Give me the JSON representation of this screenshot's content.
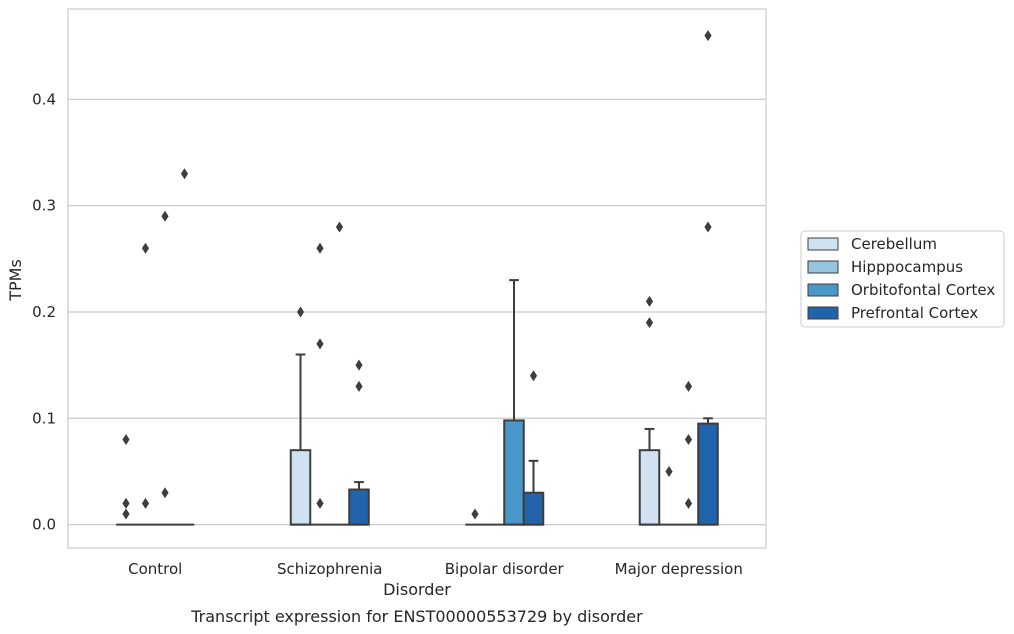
{
  "chart_data": {
    "type": "box",
    "title": "Transcript expression for ENST00000553729 by disorder",
    "xlabel": "Disorder",
    "ylabel": "TPMs",
    "ylim": [
      -0.022,
      0.485
    ],
    "yticks": [
      "0.0",
      "0.1",
      "0.2",
      "0.3",
      "0.4"
    ],
    "ytick_values": [
      0.0,
      0.1,
      0.2,
      0.3,
      0.4
    ],
    "grid": true,
    "legend_position": "right",
    "categories": [
      "Control",
      "Schizophrenia",
      "Bipolar disorder",
      "Major depression"
    ],
    "series": [
      {
        "name": "Cerebellum",
        "color": "#d0e1f2",
        "boxes": [
          {
            "q1": 0,
            "median": 0,
            "q3": 0,
            "whisker_low": 0,
            "whisker_high": 0,
            "outliers": [
              0.08,
              0.02,
              0.01
            ]
          },
          {
            "q1": 0,
            "median": 0,
            "q3": 0.07,
            "whisker_low": 0,
            "whisker_high": 0.16,
            "outliers": [
              0.2
            ]
          },
          {
            "q1": 0,
            "median": 0,
            "q3": 0,
            "whisker_low": 0,
            "whisker_high": 0,
            "outliers": [
              0.01
            ]
          },
          {
            "q1": 0,
            "median": 0,
            "q3": 0.07,
            "whisker_low": 0,
            "whisker_high": 0.09,
            "outliers": [
              0.21,
              0.19
            ]
          }
        ]
      },
      {
        "name": "Hipppocampus",
        "color": "#94c4df",
        "boxes": [
          {
            "q1": 0,
            "median": 0,
            "q3": 0,
            "whisker_low": 0,
            "whisker_high": 0,
            "outliers": [
              0.26,
              0.02
            ]
          },
          {
            "q1": 0,
            "median": 0,
            "q3": 0,
            "whisker_low": 0,
            "whisker_high": 0,
            "outliers": [
              0.26,
              0.17,
              0.02
            ]
          },
          {
            "q1": 0,
            "median": 0,
            "q3": 0,
            "whisker_low": 0,
            "whisker_high": 0,
            "outliers": []
          },
          {
            "q1": 0,
            "median": 0,
            "q3": 0,
            "whisker_low": 0,
            "whisker_high": 0,
            "outliers": [
              0.05
            ]
          }
        ]
      },
      {
        "name": "Orbitofontal Cortex",
        "color": "#4a98c9",
        "boxes": [
          {
            "q1": 0,
            "median": 0,
            "q3": 0,
            "whisker_low": 0,
            "whisker_high": 0,
            "outliers": [
              0.29,
              0.03
            ]
          },
          {
            "q1": 0,
            "median": 0,
            "q3": 0,
            "whisker_low": 0,
            "whisker_high": 0,
            "outliers": [
              0.28
            ]
          },
          {
            "q1": 0,
            "median": 0,
            "q3": 0.098,
            "whisker_low": 0,
            "whisker_high": 0.23,
            "outliers": []
          },
          {
            "q1": 0,
            "median": 0,
            "q3": 0,
            "whisker_low": 0,
            "whisker_high": 0,
            "outliers": [
              0.13,
              0.08,
              0.02
            ]
          }
        ]
      },
      {
        "name": "Prefrontal Cortex",
        "color": "#2164ab",
        "boxes": [
          {
            "q1": 0,
            "median": 0,
            "q3": 0,
            "whisker_low": 0,
            "whisker_high": 0,
            "outliers": [
              0.33
            ]
          },
          {
            "q1": 0,
            "median": 0,
            "q3": 0.033,
            "whisker_low": 0,
            "whisker_high": 0.04,
            "outliers": [
              0.15,
              0.13
            ]
          },
          {
            "q1": 0,
            "median": 0,
            "q3": 0.03,
            "whisker_low": 0,
            "whisker_high": 0.06,
            "outliers": [
              0.14
            ]
          },
          {
            "q1": 0,
            "median": 0,
            "q3": 0.095,
            "whisker_low": 0,
            "whisker_high": 0.1,
            "outliers": [
              0.46,
              0.28
            ]
          }
        ]
      }
    ]
  }
}
